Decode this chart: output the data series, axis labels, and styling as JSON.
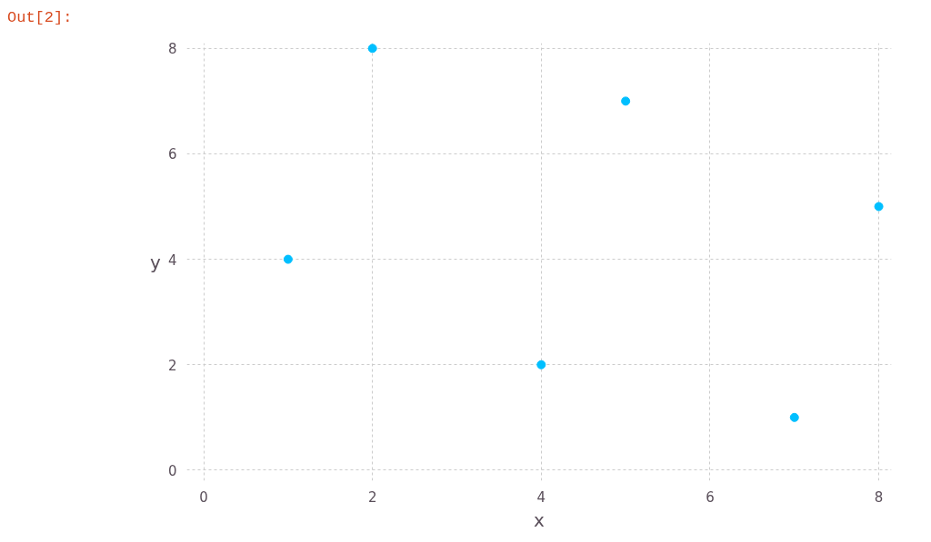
{
  "chart_data": {
    "type": "scatter",
    "xlabel": "x",
    "ylabel": "y",
    "annotations": [
      "Out[2]:"
    ],
    "x": [
      1,
      2,
      4,
      5,
      7,
      8
    ],
    "series": [
      {
        "color": "#00bfff",
        "values": [
          4,
          8,
          2,
          7,
          1,
          5
        ]
      }
    ],
    "xlim": [
      -0.2,
      8.15
    ],
    "ylim": [
      -0.2,
      8.1
    ],
    "xticks": [
      0,
      2,
      4,
      6,
      8
    ],
    "yticks": [
      0,
      2,
      4,
      6,
      8
    ],
    "grid": true,
    "marker": "circle"
  }
}
